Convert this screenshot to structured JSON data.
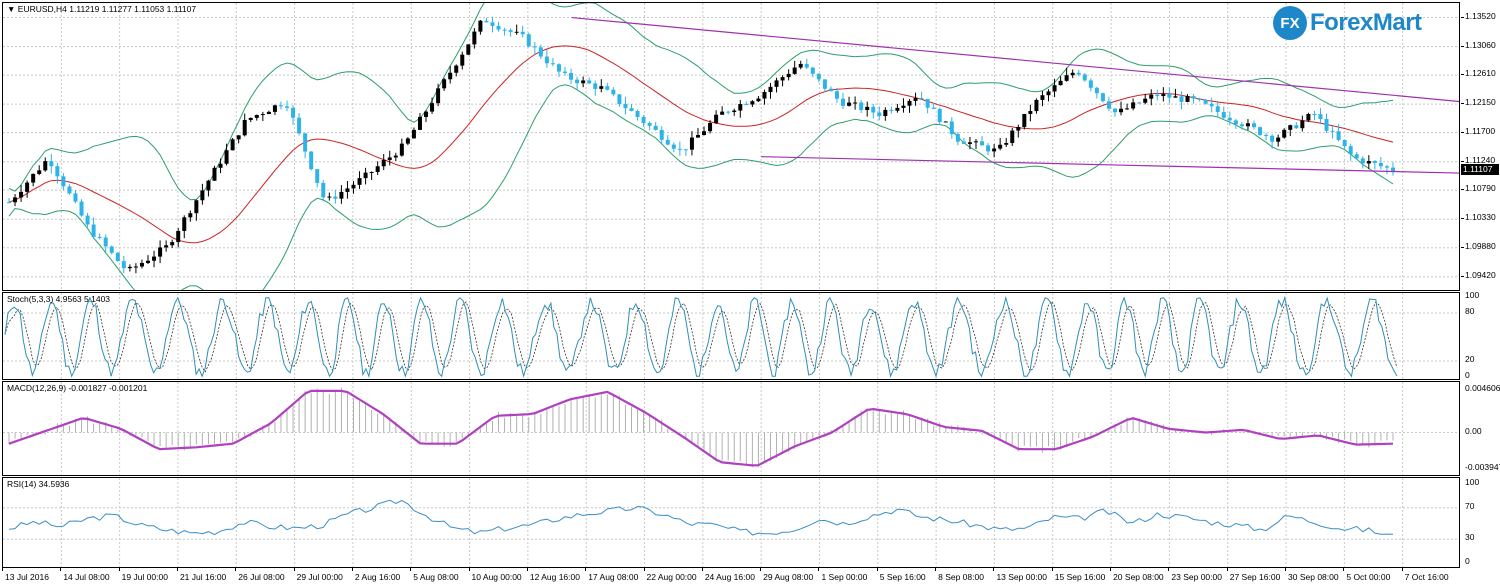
{
  "chart_data": [
    {
      "type": "candlestick",
      "title": "EURUSD,H4  1.11219 1.11277 1.11053 1.11107",
      "symbol": "EURUSD",
      "timeframe": "H4",
      "ohlc_header": {
        "open": "1.11219",
        "high": "1.11277",
        "low": "1.11053",
        "close": "1.11107"
      },
      "last_price": "1.11107",
      "ylim": [
        1.0918,
        1.1375
      ],
      "y_ticks": [
        "1.13520",
        "1.13060",
        "1.12610",
        "1.12150",
        "1.11700",
        "1.11240",
        "1.10790",
        "1.10330",
        "1.09880",
        "1.09420"
      ],
      "x_ticks": [
        "13 Jul 2016",
        "14 Jul 08:00",
        "19 Jul 00:00",
        "21 Jul 16:00",
        "26 Jul 08:00",
        "29 Jul 00:00",
        "2 Aug 16:00",
        "5 Aug 08:00",
        "10 Aug 00:00",
        "12 Aug 16:00",
        "17 Aug 08:00",
        "22 Aug 00:00",
        "24 Aug 16:00",
        "29 Aug 08:00",
        "1 Sep 00:00",
        "5 Sep 16:00",
        "8 Sep 08:00",
        "13 Sep 00:00",
        "15 Sep 16:00",
        "20 Sep 08:00",
        "23 Sep 00:00",
        "27 Sep 16:00",
        "30 Sep 08:00",
        "5 Oct 00:00",
        "7 Oct 16:00"
      ],
      "indicators": [
        "Bollinger Bands",
        "Moving Average"
      ],
      "trendlines": [
        {
          "name": "upper",
          "from": [
            0.39,
            1.1352
          ],
          "to": [
            1.0,
            1.1219
          ]
        },
        {
          "name": "lower",
          "from": [
            0.52,
            1.1132
          ],
          "to": [
            1.0,
            1.1106
          ]
        }
      ],
      "key_closes": [
        1.106,
        1.113,
        1.102,
        1.095,
        1.099,
        1.109,
        1.119,
        1.122,
        1.106,
        1.11,
        1.115,
        1.125,
        1.135,
        1.132,
        1.126,
        1.124,
        1.119,
        1.114,
        1.12,
        1.123,
        1.128,
        1.122,
        1.12,
        1.123,
        1.116,
        1.114,
        1.122,
        1.127,
        1.12,
        1.123,
        1.122,
        1.119,
        1.116,
        1.12,
        1.113,
        1.1111
      ]
    },
    {
      "type": "line",
      "title": "Stoch(5,3,3) 4.9563 5.1403",
      "name": "Stoch(5,3,3)",
      "values_label": [
        "4.9563",
        "5.1403"
      ],
      "ylim": [
        0,
        100
      ],
      "y_ticks": [
        "100",
        "80",
        "20",
        "0"
      ],
      "levels": [
        20,
        80
      ]
    },
    {
      "type": "bar",
      "title": "MACD(12,26,9) -0.001827 -0.001201",
      "name": "MACD(12,26,9)",
      "values_label": [
        "-0.001827",
        "-0.001201"
      ],
      "ylim": [
        -0.00394,
        0.0046
      ],
      "y_ticks": [
        "0.004606",
        "0.00",
        "-0.003947"
      ],
      "signal_path": [
        -0.0012,
        0.0002,
        0.0016,
        0.0004,
        -0.0018,
        -0.0016,
        -0.0012,
        0.001,
        0.0045,
        0.0045,
        0.002,
        -0.0012,
        -0.0012,
        0.0018,
        0.002,
        0.0036,
        0.0044,
        0.0022,
        -0.0004,
        -0.0032,
        -0.0036,
        -0.0015,
        0.0,
        0.0026,
        0.002,
        0.0006,
        0.0002,
        -0.0018,
        -0.0018,
        -0.0004,
        0.0016,
        0.0004,
        0.0,
        0.0003,
        -0.0007,
        -0.0003,
        -0.0013,
        -0.0012
      ]
    },
    {
      "type": "line",
      "title": "RSI(14) 34.5936",
      "name": "RSI(14)",
      "values_label": [
        "34.5936"
      ],
      "ylim": [
        0,
        100
      ],
      "y_ticks": [
        "100",
        "70",
        "30",
        "0"
      ],
      "levels": [
        30,
        70
      ],
      "values": [
        44,
        52,
        46,
        56,
        60,
        48,
        42,
        38,
        40,
        52,
        46,
        44,
        48,
        62,
        70,
        80,
        60,
        44,
        38,
        44,
        48,
        56,
        62,
        66,
        70,
        62,
        50,
        48,
        40,
        38,
        42,
        56,
        50,
        60,
        68,
        58,
        54,
        48,
        42,
        44,
        58,
        56,
        66,
        50,
        62,
        58,
        52,
        48,
        42,
        60,
        52,
        44,
        42,
        34
      ]
    }
  ],
  "logo": {
    "mark": "FX",
    "text": "ForexMart"
  },
  "colors": {
    "bull": "#000000",
    "bear": "#2eb3e6",
    "bollinger": "#2e9e6a",
    "ma": "#cc2222",
    "trendline": "#a030b0",
    "stoch_main": "#2e8fb5",
    "macd_signal": "#b040c0",
    "rsi": "#3a8ec8",
    "grid": "#c8c8c8"
  }
}
